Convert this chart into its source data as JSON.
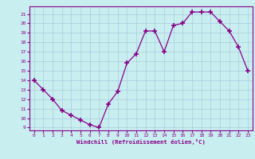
{
  "x": [
    0,
    1,
    2,
    3,
    4,
    5,
    6,
    7,
    8,
    9,
    10,
    11,
    12,
    13,
    14,
    15,
    16,
    17,
    18,
    19,
    20,
    21,
    22,
    23
  ],
  "y": [
    14,
    13,
    12,
    10.8,
    10.3,
    9.8,
    9.3,
    9,
    11.5,
    12.8,
    15.8,
    16.8,
    19.2,
    19.2,
    17,
    19.8,
    20,
    21.2,
    21.2,
    21.2,
    20.2,
    19.2,
    17.5,
    15
  ],
  "line_color": "#880088",
  "marker_color": "#880088",
  "bg_color": "#c8eef0",
  "grid_color": "#aaccdd",
  "text_color": "#880088",
  "xlabel": "Windchill (Refroidissement éolien,°C)",
  "xlim": [
    -0.5,
    23.5
  ],
  "ylim": [
    8.7,
    21.8
  ],
  "yticks": [
    9,
    10,
    11,
    12,
    13,
    14,
    15,
    16,
    17,
    18,
    19,
    20,
    21
  ],
  "xticks": [
    0,
    1,
    2,
    3,
    4,
    5,
    6,
    7,
    8,
    9,
    10,
    11,
    12,
    13,
    14,
    15,
    16,
    17,
    18,
    19,
    20,
    21,
    22,
    23
  ]
}
